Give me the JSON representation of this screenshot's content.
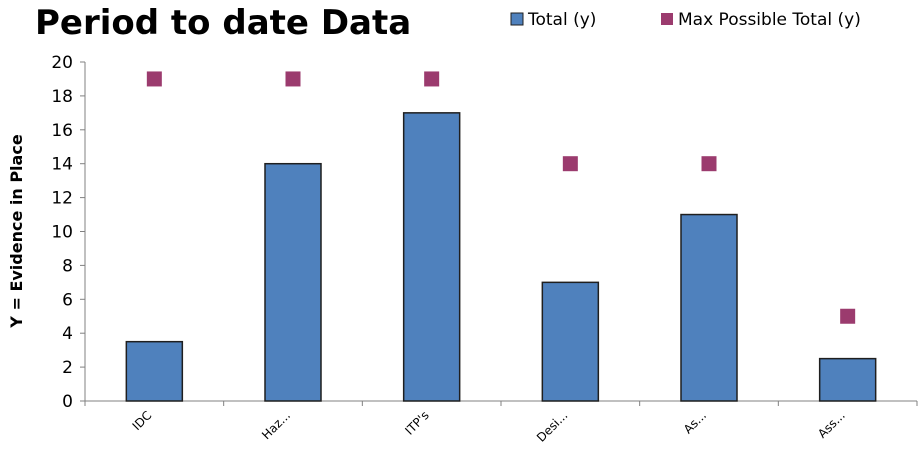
{
  "chart_data": {
    "type": "bar",
    "title": "Period to date Data",
    "ylabel": "Y = Evidence in Place",
    "xlabel": "",
    "ylim": [
      0,
      20
    ],
    "yticks": [
      0,
      2,
      4,
      6,
      8,
      10,
      12,
      14,
      16,
      18,
      20
    ],
    "grid": false,
    "legend_position": "top-right",
    "categories": [
      "IDC",
      "Haz...",
      "ITP's",
      "Desi...",
      "As...",
      "Ass..."
    ],
    "series": [
      {
        "name": "Total (y)",
        "type": "bar",
        "color": "#4F81BD",
        "values": [
          3.5,
          14,
          17,
          7,
          11,
          2.5
        ]
      },
      {
        "name": "Max Possible Total (y)",
        "type": "scatter",
        "marker": "square",
        "color": "#9B3B6E",
        "values": [
          19,
          19,
          19,
          14,
          14,
          5
        ]
      }
    ]
  }
}
